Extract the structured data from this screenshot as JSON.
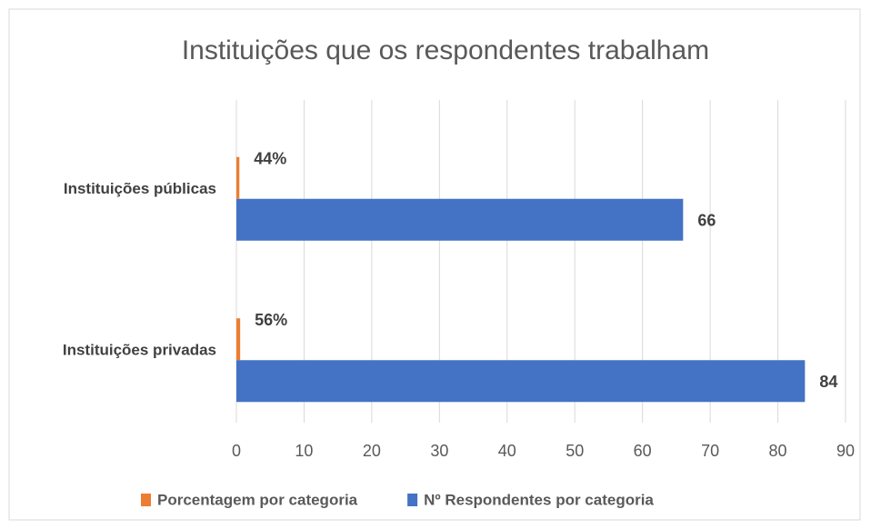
{
  "chart_data": {
    "type": "bar",
    "orientation": "horizontal",
    "title": "Instituições que os respondentes trabalham",
    "categories": [
      "Instituições públicas",
      "Instituições privadas"
    ],
    "series": [
      {
        "name": "Porcentagem por categoria",
        "color": "#ed7d31",
        "values": [
          0.44,
          0.56
        ],
        "value_labels": [
          "44%",
          "56%"
        ]
      },
      {
        "name": "Nº Respondentes por categoria",
        "color": "#4472c4",
        "values": [
          66,
          84
        ]
      }
    ],
    "xlim": [
      0,
      90
    ],
    "xticks": [
      0,
      10,
      20,
      30,
      40,
      50,
      60,
      70,
      80,
      90
    ],
    "grid": true,
    "legend": "bottom"
  }
}
